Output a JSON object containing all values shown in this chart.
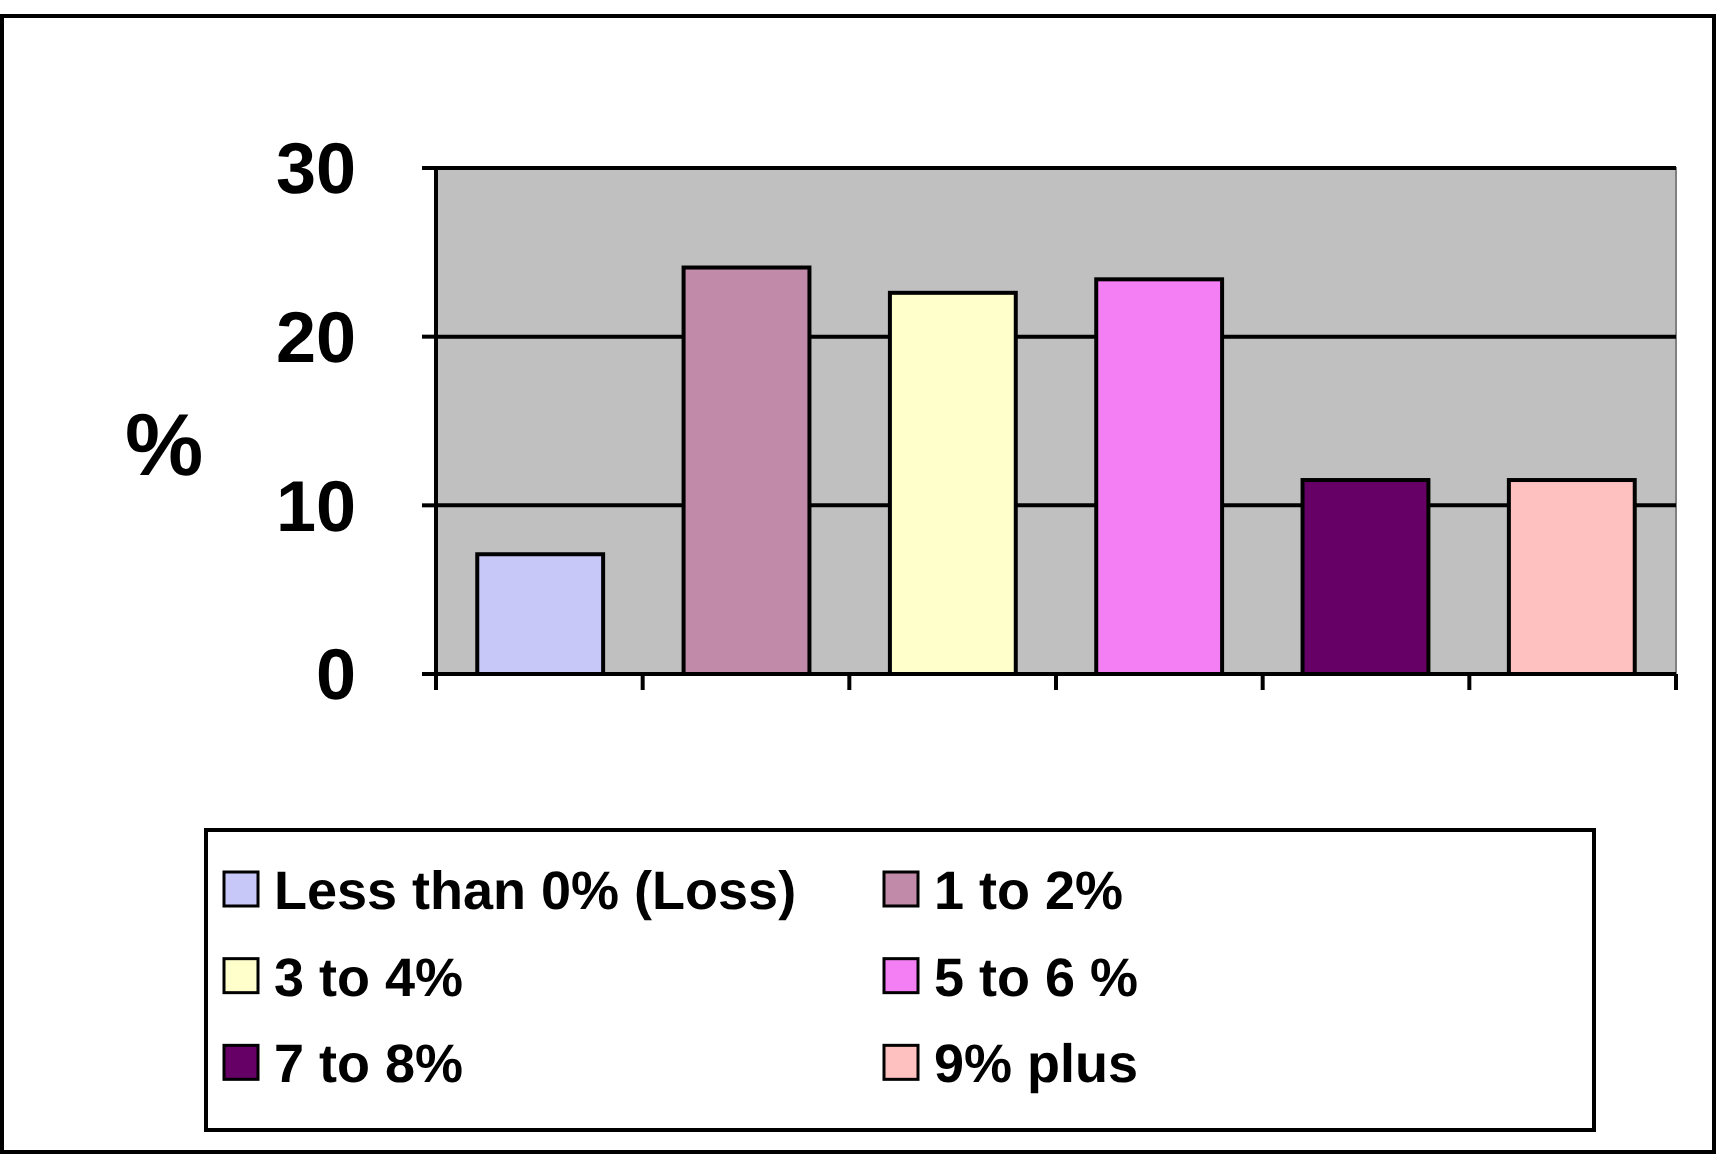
{
  "chart_data": {
    "type": "bar",
    "ylabel": "%",
    "categories": [
      null,
      null,
      null,
      null,
      null,
      null
    ],
    "series": [
      {
        "name": "Less than 0% (Loss)",
        "color": "#c8c8f8",
        "values": [
          7.1,
          null,
          null,
          null,
          null,
          null
        ]
      },
      {
        "name": "1 to 2%",
        "color": "#c08aa8",
        "values": [
          null,
          24.1,
          null,
          null,
          null,
          null
        ]
      },
      {
        "name": "3 to 4%",
        "color": "#ffffcc",
        "values": [
          null,
          null,
          22.6,
          null,
          null,
          null
        ]
      },
      {
        "name": "5 to 6 %",
        "color": "#f47ef4",
        "values": [
          null,
          null,
          null,
          23.4,
          null,
          null
        ]
      },
      {
        "name": "7 to 8%",
        "color": "#660066",
        "values": [
          null,
          null,
          null,
          null,
          11.5,
          null
        ]
      },
      {
        "name": "9% plus",
        "color": "#ffc0c0",
        "values": [
          null,
          null,
          null,
          null,
          null,
          11.5
        ]
      }
    ],
    "ylim": [
      0,
      30
    ],
    "yticks": [
      0,
      10,
      20,
      30
    ],
    "grid": "y",
    "legend": "bottom",
    "tick_labels": "y"
  }
}
